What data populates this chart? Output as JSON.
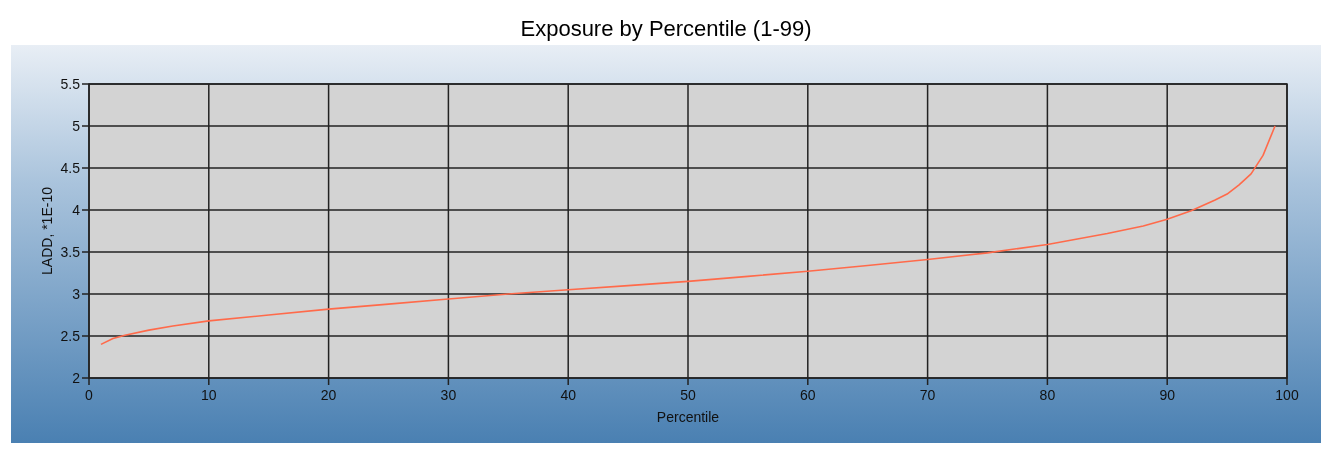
{
  "chart_data": {
    "type": "line",
    "title": "Exposure by Percentile (1-99)",
    "xlabel": "Percentile",
    "ylabel": "LADD, *1E-10",
    "x": [
      1,
      2,
      3,
      5,
      7,
      10,
      15,
      20,
      25,
      30,
      35,
      40,
      45,
      50,
      55,
      60,
      65,
      70,
      75,
      80,
      85,
      88,
      90,
      92,
      94,
      95,
      96,
      97,
      98,
      99
    ],
    "series": [
      {
        "color": "#ff6a4a",
        "values": [
          2.4,
          2.47,
          2.51,
          2.57,
          2.62,
          2.68,
          2.75,
          2.82,
          2.88,
          2.94,
          3.0,
          3.05,
          3.1,
          3.15,
          3.21,
          3.27,
          3.34,
          3.41,
          3.49,
          3.59,
          3.72,
          3.81,
          3.89,
          3.99,
          4.12,
          4.19,
          4.3,
          4.43,
          4.65,
          5.0
        ]
      }
    ],
    "xlim": [
      0,
      100
    ],
    "xticks": [
      0,
      10,
      20,
      30,
      40,
      50,
      60,
      70,
      80,
      90,
      100
    ],
    "ylim": [
      2,
      5.5
    ],
    "yticks": [
      2,
      2.5,
      3,
      3.5,
      4,
      4.5,
      5,
      5.5
    ],
    "grid": true,
    "marker": "none",
    "line_style": "solid"
  }
}
